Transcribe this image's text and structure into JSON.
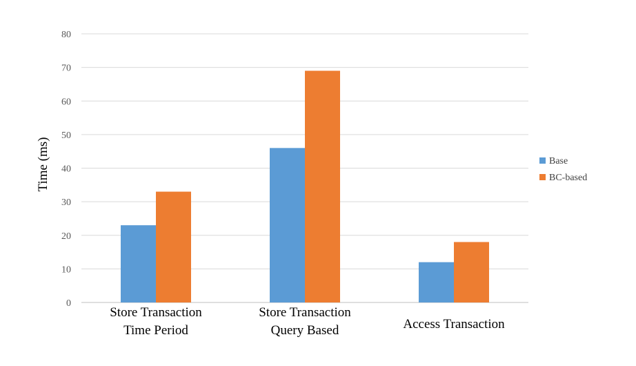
{
  "chart_data": {
    "type": "bar",
    "title": "",
    "xlabel": "",
    "ylabel": "Time (ms)",
    "ylim": [
      0,
      80
    ],
    "yticks": [
      0,
      10,
      20,
      30,
      40,
      50,
      60,
      70,
      80
    ],
    "grid": true,
    "legend_position": "right",
    "categories": [
      [
        "Store Transaction",
        "Time Period"
      ],
      [
        "Store Transaction",
        "Query Based"
      ],
      [
        "Access Transaction"
      ]
    ],
    "series": [
      {
        "name": "Base",
        "color": "#5b9bd5",
        "values": [
          23,
          46,
          12
        ]
      },
      {
        "name": "BC-based",
        "color": "#ed7d31",
        "values": [
          33,
          69,
          18
        ]
      }
    ]
  }
}
